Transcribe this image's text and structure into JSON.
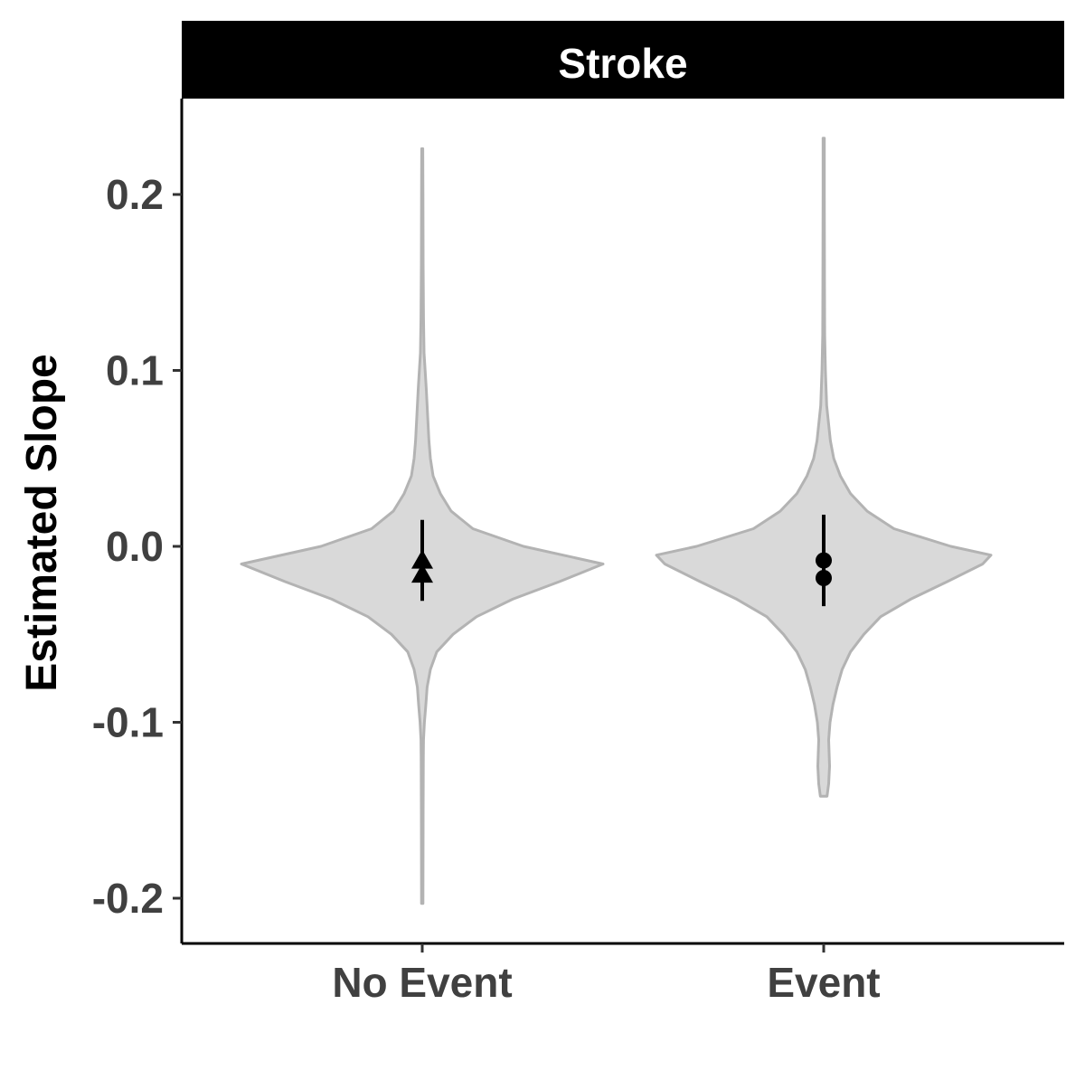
{
  "chart_data": {
    "type": "violin",
    "panel_title": "Stroke",
    "xlabel": "",
    "ylabel": "Estimated Slope",
    "ylim": [
      -0.21,
      0.255
    ],
    "y_ticks": [
      {
        "value": -0.2,
        "label": "-0.2"
      },
      {
        "value": -0.1,
        "label": "-0.1"
      },
      {
        "value": 0.0,
        "label": "0.0"
      },
      {
        "value": 0.1,
        "label": "0.1"
      },
      {
        "value": 0.2,
        "label": "0.2"
      }
    ],
    "categories": [
      "No Event",
      "Event"
    ],
    "grid": false,
    "colors": {
      "violin_fill": "#d9d9d9",
      "violin_outline": "#b3b3b3",
      "summary": "#000000",
      "strip_background": "#000000",
      "strip_text": "#ffffff",
      "tick_text": "#404040"
    },
    "groups": [
      {
        "category": "No Event",
        "marker": "triangle",
        "range": [
          -0.203,
          0.226
        ],
        "points": [
          -0.008,
          -0.016
        ],
        "interval": [
          -0.031,
          0.015
        ],
        "density_profile": [
          [
            -0.203,
            0.004
          ],
          [
            -0.15,
            0.005
          ],
          [
            -0.12,
            0.006
          ],
          [
            -0.11,
            0.007
          ],
          [
            -0.1,
            0.012
          ],
          [
            -0.09,
            0.02
          ],
          [
            -0.08,
            0.027
          ],
          [
            -0.07,
            0.045
          ],
          [
            -0.06,
            0.08
          ],
          [
            -0.05,
            0.17
          ],
          [
            -0.04,
            0.3
          ],
          [
            -0.03,
            0.5
          ],
          [
            -0.02,
            0.76
          ],
          [
            -0.01,
            1.0
          ],
          [
            0.0,
            0.56
          ],
          [
            0.01,
            0.28
          ],
          [
            0.02,
            0.16
          ],
          [
            0.03,
            0.1
          ],
          [
            0.04,
            0.06
          ],
          [
            0.05,
            0.045
          ],
          [
            0.06,
            0.037
          ],
          [
            0.07,
            0.032
          ],
          [
            0.08,
            0.027
          ],
          [
            0.09,
            0.022
          ],
          [
            0.1,
            0.016
          ],
          [
            0.11,
            0.01
          ],
          [
            0.13,
            0.007
          ],
          [
            0.16,
            0.005
          ],
          [
            0.2,
            0.004
          ],
          [
            0.226,
            0.003
          ]
        ]
      },
      {
        "category": "Event",
        "marker": "circle",
        "range": [
          -0.142,
          0.232
        ],
        "points": [
          -0.008,
          -0.018
        ],
        "interval": [
          -0.034,
          0.018
        ],
        "density_profile": [
          [
            -0.142,
            0.02
          ],
          [
            -0.135,
            0.03
          ],
          [
            -0.125,
            0.035
          ],
          [
            -0.11,
            0.03
          ],
          [
            -0.1,
            0.038
          ],
          [
            -0.09,
            0.055
          ],
          [
            -0.08,
            0.08
          ],
          [
            -0.07,
            0.11
          ],
          [
            -0.06,
            0.16
          ],
          [
            -0.05,
            0.24
          ],
          [
            -0.04,
            0.34
          ],
          [
            -0.03,
            0.52
          ],
          [
            -0.02,
            0.74
          ],
          [
            -0.01,
            0.95
          ],
          [
            -0.005,
            1.0
          ],
          [
            0.0,
            0.76
          ],
          [
            0.01,
            0.42
          ],
          [
            0.02,
            0.26
          ],
          [
            0.03,
            0.16
          ],
          [
            0.04,
            0.1
          ],
          [
            0.05,
            0.06
          ],
          [
            0.06,
            0.04
          ],
          [
            0.08,
            0.018
          ],
          [
            0.1,
            0.01
          ],
          [
            0.12,
            0.006
          ],
          [
            0.15,
            0.005
          ],
          [
            0.2,
            0.004
          ],
          [
            0.232,
            0.004
          ]
        ]
      }
    ]
  }
}
